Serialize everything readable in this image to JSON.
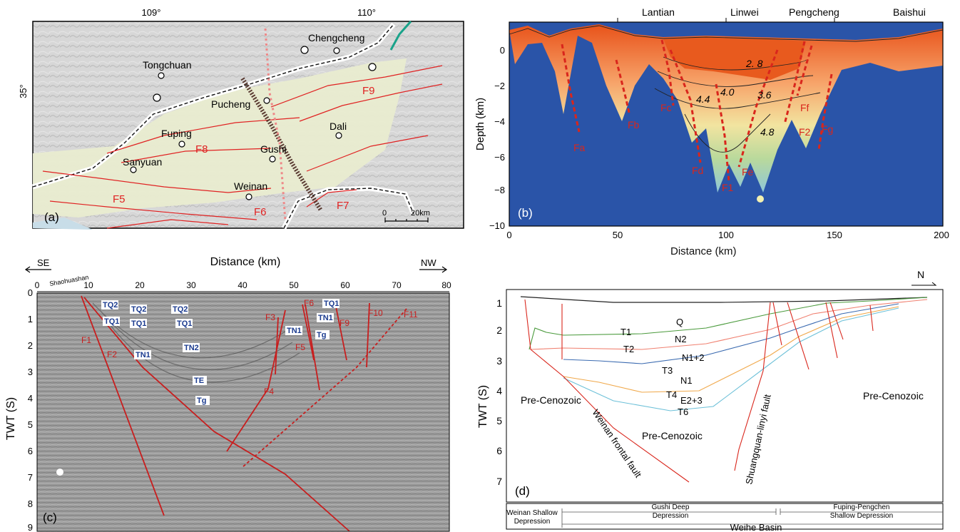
{
  "panel_a": {
    "label": "(a)",
    "lon_ticks": [
      "109°",
      "110°"
    ],
    "lat_tick": "35°",
    "cities": [
      "Chengcheng",
      "Tongchuan",
      "Pucheng",
      "Dali",
      "Fuping",
      "Gushi",
      "Sanyuan",
      "Weinan"
    ],
    "faults": [
      "F9",
      "F8",
      "F5",
      "F6",
      "F7"
    ],
    "scale": {
      "zero": "0",
      "distance": "20km"
    }
  },
  "panel_b": {
    "label": "(b)",
    "places": [
      "Lantian",
      "Linwei",
      "Pengcheng",
      "Baishui"
    ],
    "faults": [
      "Fa",
      "Fb",
      "Fc",
      "Fd",
      "Fe",
      "F1",
      "F2",
      "Ff",
      "Fg"
    ],
    "contours": [
      "2. 8",
      "4.0",
      "3.6",
      "4.4",
      "4.8"
    ],
    "ylabel": "Depth (km)",
    "xlabel": "Distance (km)",
    "xticks": [
      "0",
      "50",
      "100",
      "150",
      "200"
    ],
    "yticks": [
      "0",
      "−2",
      "−4",
      "−6",
      "−8",
      "−10"
    ]
  },
  "panel_c": {
    "label": "(c)",
    "se": "SE",
    "nw": "NW",
    "title": "Distance (km)",
    "site": "Shaohuashan",
    "ylabel": "TWT (S)",
    "xticks": [
      "0",
      "10",
      "20",
      "30",
      "40",
      "50",
      "60",
      "70",
      "80"
    ],
    "yticks": [
      "0",
      "1",
      "2",
      "3",
      "4",
      "5",
      "6",
      "7",
      "8",
      "9"
    ],
    "faults": [
      "F1",
      "F2",
      "F3",
      "F4",
      "F5",
      "F6",
      "F9",
      "F10",
      "F11"
    ],
    "layer_q2": "TQ2",
    "layer_q1": "TQ1",
    "layer_n1": "TN1",
    "layer_n2": "TN2",
    "layer_e": "TE",
    "layer_g": "Tg"
  },
  "panel_d": {
    "label": "(d)",
    "north": "N",
    "ylabel": "TWT (S)",
    "yticks": [
      "1",
      "2",
      "3",
      "4",
      "5",
      "6",
      "7"
    ],
    "layers": [
      "Q",
      "T1",
      "N2",
      "T2",
      "N1+2",
      "T3",
      "N1",
      "T4",
      "E2+3",
      "T6"
    ],
    "precenozoic": "Pre-Cenozoic",
    "fault_weinan": "Weinan frontal fault",
    "fault_shuang": "Shuangquan-linyi fault",
    "units": {
      "weinan1": "Weinan Shallow",
      "weinan2": "Depression",
      "gushi1": "Gushi Deep",
      "gushi2": "Depression",
      "fuping1": "Fuping-Pengchen",
      "fuping2": "Shallow Depression",
      "basin": "Weihe Basin"
    }
  }
}
